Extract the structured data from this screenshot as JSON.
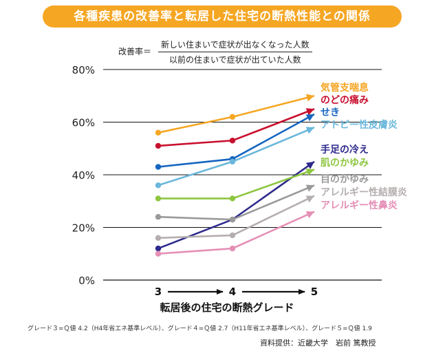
{
  "chart_data": {
    "type": "line",
    "title": "各種疾患の改善率と転居した住宅の断熱性能との関係",
    "formula": {
      "lhs": "改善率＝",
      "numerator": "新しい住まいで症状が出なくなった人数",
      "denominator": "以前の住まいで症状が出ていた人数"
    },
    "x": [
      "3",
      "4",
      "5"
    ],
    "xlabel": "転居後の住宅の断熱グレード",
    "ylim": [
      0,
      80
    ],
    "yticks": [
      "0%",
      "20%",
      "40%",
      "60%",
      "80%"
    ],
    "ytick_values": [
      0,
      20,
      40,
      60,
      80
    ],
    "grid": true,
    "legend": "right",
    "series": [
      {
        "name": "気管支喘息",
        "values": [
          56,
          62,
          70
        ],
        "color": "#f5a623",
        "marker": "circle"
      },
      {
        "name": "のどの痛み",
        "values": [
          51,
          53,
          65
        ],
        "color": "#c8102e",
        "marker": "circle"
      },
      {
        "name": "せき",
        "values": [
          43,
          46,
          63
        ],
        "color": "#1565c0",
        "marker": "circle"
      },
      {
        "name": "アトピー性皮膚炎",
        "values": [
          36,
          45,
          58
        ],
        "color": "#6ab7db",
        "marker": "circle"
      },
      {
        "name": "手足の冷え",
        "values": [
          12,
          23,
          45
        ],
        "color": "#2e2a8c",
        "marker": "circle"
      },
      {
        "name": "肌のかゆみ",
        "values": [
          31,
          31,
          42
        ],
        "color": "#8dc63f",
        "marker": "circle"
      },
      {
        "name": "目のかゆみ",
        "values": [
          24,
          23,
          36
        ],
        "color": "#9a9a9a",
        "marker": "circle"
      },
      {
        "name": "アレルギー性結膜炎",
        "values": [
          16,
          17,
          32
        ],
        "color": "#b5aeae",
        "marker": "circle"
      },
      {
        "name": "アレルギー性鼻炎",
        "values": [
          10,
          12,
          26
        ],
        "color": "#e58fb6",
        "marker": "circle"
      }
    ],
    "grade_note": "グレード３=Ｑ値 4.2（H4年省エネ基準レベル）、グレード４=Ｑ値 2.7（H11年省エネ基準レベル）、グレード５=Ｑ値 1.9",
    "source": "資料提供：近畿大学　岩前 篤教授"
  }
}
